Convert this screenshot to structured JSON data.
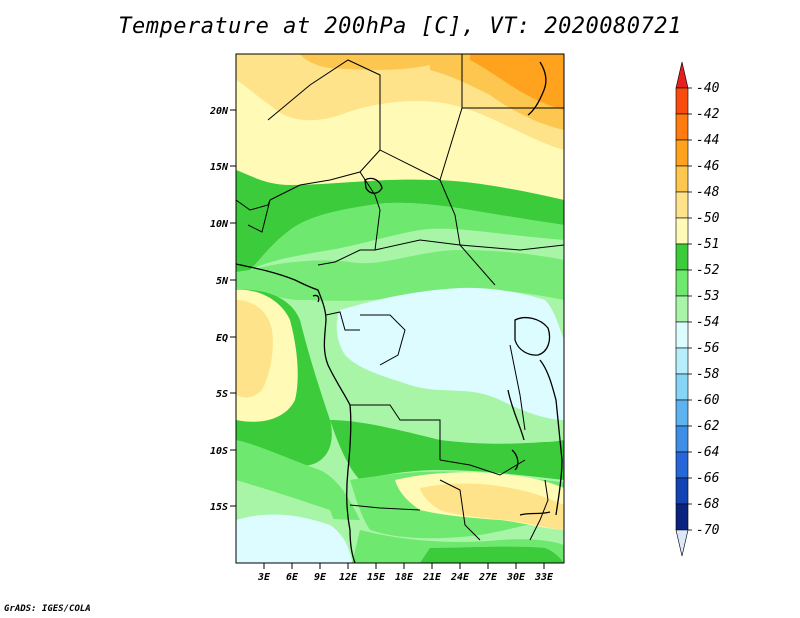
{
  "title": "Temperature at 200hPa [C], VT: 2020080721",
  "credit": "GrADS: IGES/COLA",
  "lat_ticks": [
    "20N",
    "15N",
    "10N",
    "5N",
    "EQ",
    "5S",
    "10S",
    "15S"
  ],
  "lon_ticks": [
    "3E",
    "6E",
    "9E",
    "12E",
    "15E",
    "18E",
    "21E",
    "24E",
    "27E",
    "30E",
    "33E"
  ],
  "colorbar": {
    "labels": [
      "-40",
      "-42",
      "-44",
      "-46",
      "-48",
      "-50",
      "-51",
      "-52",
      "-53",
      "-54",
      "-56",
      "-58",
      "-60",
      "-62",
      "-64",
      "-66",
      "-68",
      "-70"
    ],
    "colors": [
      "#e81e1e",
      "#fa4b0f",
      "#ff7a0f",
      "#ffa31f",
      "#fdc64f",
      "#fee38b",
      "#fffbb6",
      "#3bcb3b",
      "#6fe86f",
      "#a8f5a8",
      "#dcfcff",
      "#b6eefc",
      "#86d4f6",
      "#5eb2ee",
      "#3f8ee6",
      "#2666d6",
      "#1443b3",
      "#0a237e",
      "#dce8fa"
    ]
  },
  "palette": {
    "t50": "#fee38b",
    "t48": "#fdc64f",
    "t46": "#ffa31f",
    "t51": "#fffbb6",
    "t52": "#3bcb3b",
    "t53": "#6fe86f",
    "t54": "#a8f5a8",
    "t56": "#dcfcff"
  }
}
